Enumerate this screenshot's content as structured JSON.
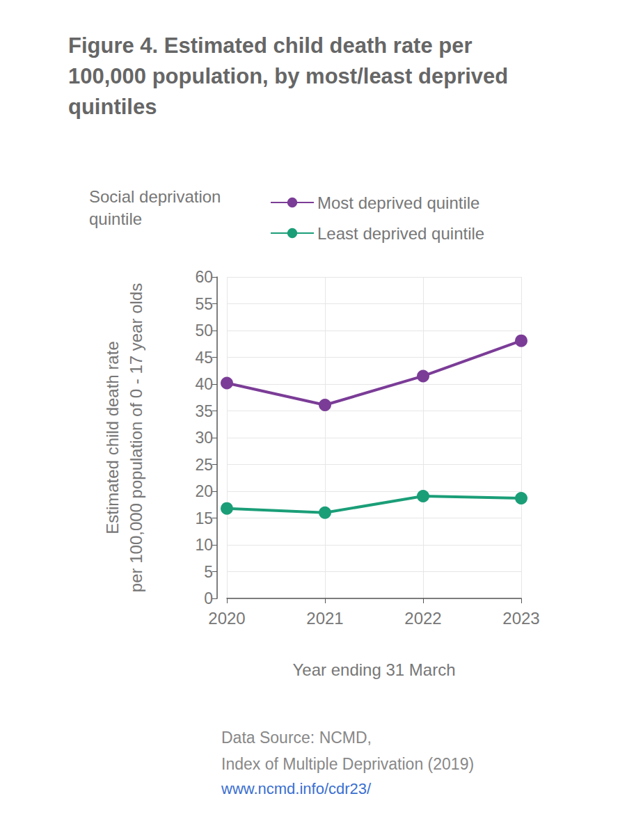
{
  "chart_data": {
    "type": "line",
    "title": "Figure 4. Estimated child death rate per\n100,000 population, by most/least deprived\nquintiles",
    "legend_title": "Social deprivation\nquintile",
    "x_label": "Year ending 31 March",
    "y_label": "Estimated child death rate\nper 100,000 population of 0 - 17 year olds",
    "categories": [
      "2020",
      "2021",
      "2022",
      "2023"
    ],
    "series": [
      {
        "name": "Most deprived quintile",
        "color": "#7b3c97",
        "marker": "circle",
        "values": [
          40.2,
          36.1,
          41.5,
          48.1
        ]
      },
      {
        "name": "Least deprived quintile",
        "color": "#1a9e78",
        "marker": "circle",
        "values": [
          16.8,
          16.0,
          19.1,
          18.7
        ]
      }
    ],
    "ylim": [
      0,
      60
    ],
    "yticks": [
      0,
      5,
      10,
      15,
      20,
      25,
      30,
      35,
      40,
      45,
      50,
      55,
      60
    ],
    "grid": true,
    "legend": "top",
    "source": [
      "Data Source: NCMD,",
      "Index of Multiple Deprivation (2019)",
      "www.ncmd.info/cdr23/"
    ]
  }
}
